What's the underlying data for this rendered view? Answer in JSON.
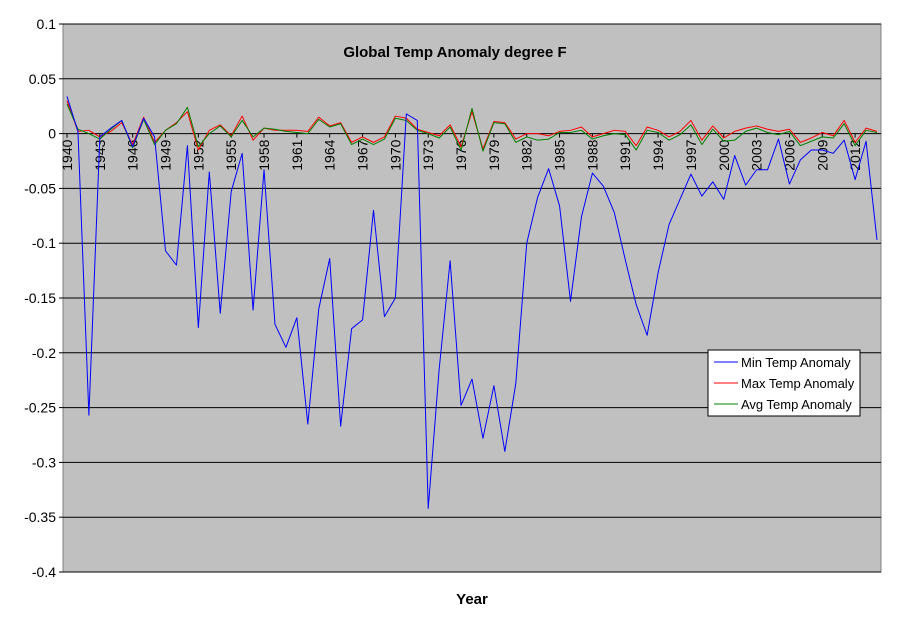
{
  "chart_data": {
    "type": "line",
    "title": "Global Temp Anomaly degree F",
    "xlabel": "Year",
    "ylabel": "",
    "ylim": [
      -0.4,
      0.1
    ],
    "yticks": [
      "0.1",
      "0.05",
      "0",
      "-0.05",
      "-0.1",
      "-0.15",
      "-0.2",
      "-0.25",
      "-0.3",
      "-0.35",
      "-0.4"
    ],
    "ytick_values": [
      0.1,
      0.05,
      0,
      -0.05,
      -0.1,
      -0.15,
      -0.2,
      -0.25,
      -0.3,
      -0.35,
      -0.4
    ],
    "x_start": 1940,
    "x_end": 2015,
    "xtick_labels": [
      "1940",
      "1943",
      "1946",
      "1949",
      "1952",
      "1955",
      "1958",
      "1961",
      "1964",
      "1967",
      "1970",
      "1973",
      "1976",
      "1979",
      "1982",
      "1985",
      "1988",
      "1991",
      "1994",
      "1997",
      "2000",
      "2003",
      "2006",
      "2009",
      "2012"
    ],
    "grid": true,
    "legend_position": "right",
    "plot_background": "#c0c0c0",
    "series": [
      {
        "name": "Min Temp Anomaly",
        "color": "#0000ff",
        "values": [
          0.034,
          0.002,
          -0.257,
          -0.003,
          0.005,
          0.012,
          -0.012,
          0.014,
          -0.003,
          -0.107,
          -0.12,
          -0.011,
          -0.177,
          -0.035,
          -0.164,
          -0.053,
          -0.018,
          -0.161,
          -0.033,
          -0.174,
          -0.195,
          -0.168,
          -0.265,
          -0.16,
          -0.114,
          -0.267,
          -0.178,
          -0.17,
          -0.07,
          -0.167,
          -0.15,
          0.018,
          0.012,
          -0.342,
          -0.215,
          -0.116,
          -0.248,
          -0.224,
          -0.278,
          -0.23,
          -0.29,
          -0.228,
          -0.1,
          -0.058,
          -0.032,
          -0.066,
          -0.153,
          -0.076,
          -0.036,
          -0.048,
          -0.072,
          -0.115,
          -0.156,
          -0.184,
          -0.127,
          -0.083,
          -0.06,
          -0.037,
          -0.057,
          -0.044,
          -0.06,
          -0.02,
          -0.047,
          -0.033,
          -0.033,
          -0.005,
          -0.046,
          -0.024,
          -0.015,
          -0.015,
          -0.018,
          -0.006,
          -0.042,
          -0.007,
          -0.097
        ]
      },
      {
        "name": "Max Temp Anomaly",
        "color": "#ff0000",
        "values": [
          0.03,
          0.002,
          0.003,
          -0.003,
          0.002,
          0.01,
          -0.01,
          0.015,
          -0.008,
          0.003,
          0.01,
          0.02,
          -0.015,
          0.003,
          0.008,
          -0.002,
          0.016,
          -0.006,
          0.005,
          0.003,
          0.003,
          0.003,
          0.002,
          0.015,
          0.007,
          0.01,
          -0.008,
          -0.003,
          -0.008,
          -0.003,
          0.016,
          0.014,
          0.004,
          0.001,
          -0.002,
          0.008,
          -0.012,
          0.02,
          -0.014,
          0.011,
          0.01,
          -0.005,
          0.0,
          0.0,
          -0.002,
          0.002,
          0.003,
          0.006,
          -0.003,
          0.0,
          0.003,
          0.002,
          -0.011,
          0.006,
          0.003,
          -0.003,
          0.002,
          0.012,
          -0.006,
          0.007,
          -0.004,
          0.002,
          0.005,
          0.007,
          0.004,
          0.002,
          0.004,
          -0.008,
          -0.004,
          0.001,
          -0.002,
          0.012,
          -0.008,
          0.005,
          0.002
        ]
      },
      {
        "name": "Avg Temp Anomaly",
        "color": "#008000",
        "values": [
          0.027,
          0.004,
          0.0,
          -0.005,
          0.004,
          0.012,
          -0.013,
          0.013,
          -0.01,
          0.003,
          0.009,
          0.024,
          -0.012,
          0.0,
          0.007,
          -0.003,
          0.012,
          -0.003,
          0.005,
          0.004,
          0.002,
          0.001,
          0.0,
          0.013,
          0.006,
          0.009,
          -0.01,
          -0.005,
          -0.01,
          -0.005,
          0.014,
          0.012,
          0.003,
          0.0,
          -0.004,
          0.006,
          -0.015,
          0.023,
          -0.016,
          0.01,
          0.009,
          -0.008,
          -0.003,
          -0.006,
          -0.005,
          0.001,
          0.001,
          0.003,
          -0.005,
          -0.002,
          0.0,
          -0.001,
          -0.015,
          0.003,
          0.001,
          -0.006,
          -0.001,
          0.008,
          -0.01,
          0.004,
          -0.007,
          -0.006,
          0.002,
          0.005,
          0.001,
          -0.001,
          0.002,
          -0.011,
          -0.007,
          -0.003,
          -0.004,
          0.009,
          -0.011,
          0.003,
          0.001
        ]
      }
    ]
  }
}
